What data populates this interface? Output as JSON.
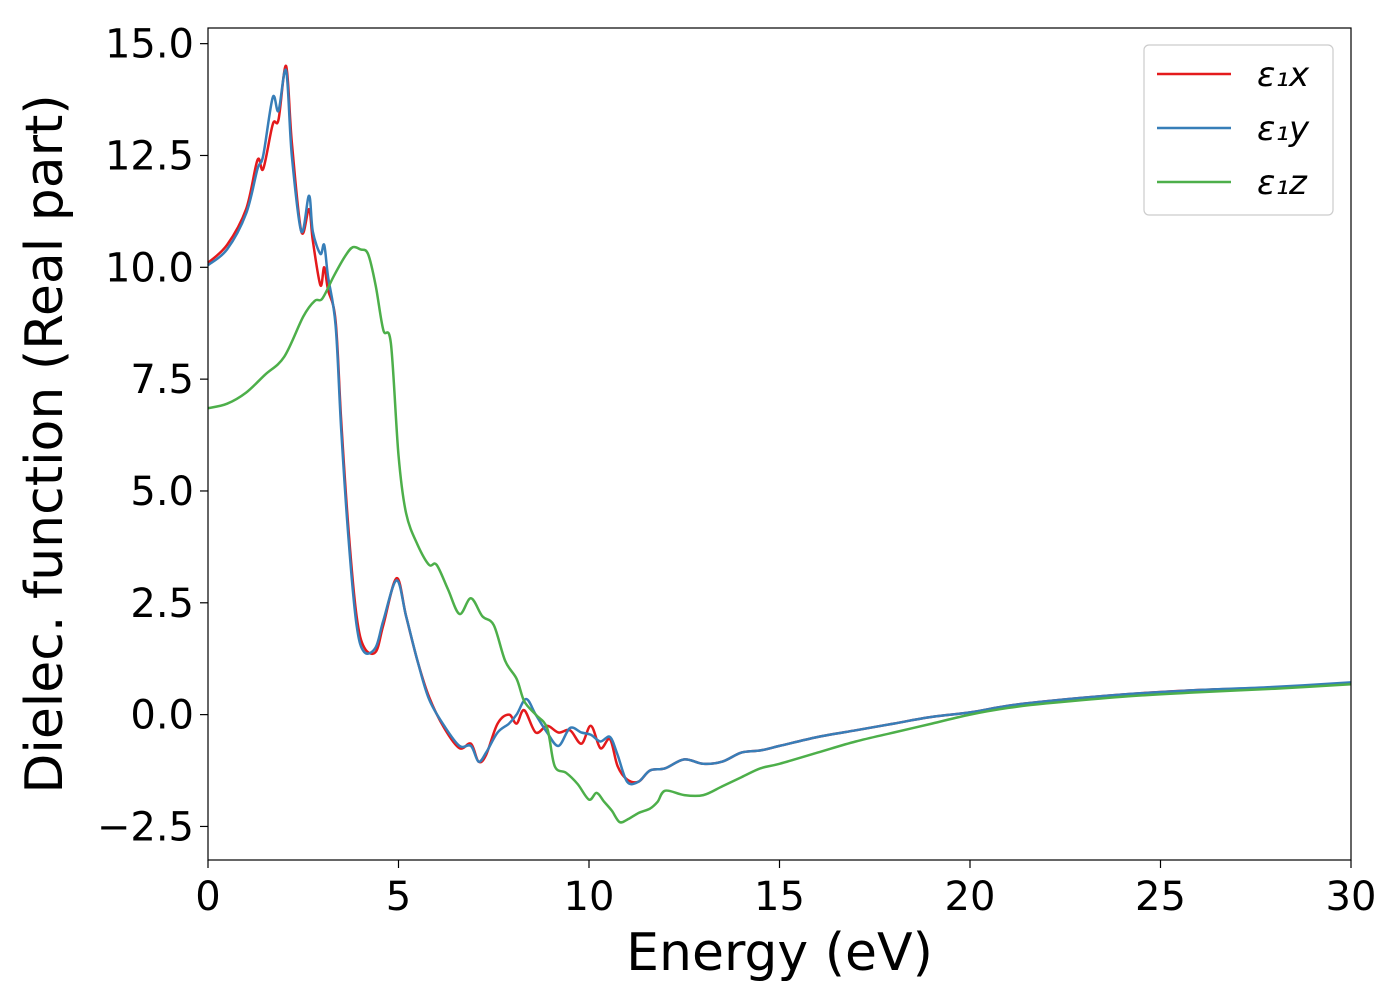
{
  "chart_data": {
    "type": "line",
    "title": "",
    "xlabel": "Energy (eV)",
    "ylabel": "Dielec. function (Real part)",
    "xlim": [
      0,
      30
    ],
    "ylim": [
      -3.25,
      15.35
    ],
    "xticks": [
      0,
      5,
      10,
      15,
      20,
      25,
      30
    ],
    "xtick_labels": [
      "0",
      "5",
      "10",
      "15",
      "20",
      "25",
      "30"
    ],
    "yticks": [
      -2.5,
      0.0,
      2.5,
      5.0,
      7.5,
      10.0,
      12.5,
      15.0
    ],
    "ytick_labels": [
      "−2.5",
      "0.0",
      "2.5",
      "5.0",
      "7.5",
      "10.0",
      "12.5",
      "15.0"
    ],
    "grid": false,
    "legend_position": "top-right",
    "series": [
      {
        "name": "ε₁x",
        "color": "#e41a1c",
        "x": [
          0,
          0.5,
          1.0,
          1.3,
          1.45,
          1.7,
          1.85,
          2.05,
          2.2,
          2.45,
          2.65,
          2.75,
          2.95,
          3.05,
          3.15,
          3.35,
          3.5,
          3.7,
          3.9,
          4.1,
          4.4,
          4.6,
          4.95,
          5.2,
          5.5,
          5.8,
          6.2,
          6.6,
          6.9,
          7.1,
          7.3,
          7.6,
          7.9,
          8.1,
          8.3,
          8.6,
          8.9,
          9.2,
          9.5,
          9.8,
          10.05,
          10.3,
          10.55,
          10.75,
          11.0,
          11.3,
          11.6,
          12.0,
          12.5,
          13.0,
          13.5,
          14.0,
          14.5,
          15.0,
          16.0,
          17.0,
          18.0,
          19.0,
          20.0,
          21.0,
          22.0,
          24.0,
          26.0,
          28.0,
          30.0
        ],
        "y": [
          10.1,
          10.5,
          11.3,
          12.4,
          12.2,
          13.2,
          13.3,
          14.5,
          12.8,
          10.8,
          11.3,
          10.6,
          9.6,
          10.0,
          9.5,
          8.8,
          6.5,
          4.0,
          2.2,
          1.5,
          1.4,
          2.0,
          3.05,
          2.2,
          1.2,
          0.4,
          -0.3,
          -0.75,
          -0.65,
          -1.05,
          -0.9,
          -0.2,
          0.0,
          -0.2,
          0.1,
          -0.4,
          -0.25,
          -0.4,
          -0.35,
          -0.65,
          -0.25,
          -0.75,
          -0.55,
          -1.15,
          -1.45,
          -1.5,
          -1.25,
          -1.2,
          -1.0,
          -1.1,
          -1.05,
          -0.85,
          -0.8,
          -0.7,
          -0.5,
          -0.35,
          -0.2,
          -0.05,
          0.05,
          0.2,
          0.3,
          0.45,
          0.55,
          0.6,
          0.7
        ]
      },
      {
        "name": "ε₁y",
        "color": "#377eb8",
        "x": [
          0,
          0.5,
          1.0,
          1.3,
          1.45,
          1.7,
          1.85,
          2.05,
          2.2,
          2.45,
          2.65,
          2.75,
          2.95,
          3.05,
          3.15,
          3.35,
          3.5,
          3.7,
          3.9,
          4.1,
          4.4,
          4.6,
          4.95,
          5.2,
          5.5,
          5.8,
          6.2,
          6.6,
          6.9,
          7.1,
          7.3,
          7.6,
          7.9,
          8.1,
          8.35,
          8.6,
          8.9,
          9.2,
          9.5,
          9.8,
          10.05,
          10.3,
          10.55,
          10.75,
          11.0,
          11.3,
          11.6,
          12.0,
          12.5,
          13.0,
          13.5,
          14.0,
          14.5,
          15.0,
          16.0,
          17.0,
          18.0,
          19.0,
          20.0,
          21.0,
          22.0,
          24.0,
          26.0,
          28.0,
          30.0
        ],
        "y": [
          10.05,
          10.4,
          11.2,
          12.2,
          12.5,
          13.8,
          13.5,
          14.4,
          12.5,
          10.8,
          11.6,
          10.8,
          10.3,
          10.5,
          9.8,
          8.7,
          6.3,
          3.8,
          2.0,
          1.4,
          1.5,
          2.1,
          3.0,
          2.2,
          1.2,
          0.35,
          -0.25,
          -0.7,
          -0.7,
          -1.05,
          -0.85,
          -0.4,
          -0.2,
          0.0,
          0.35,
          0.0,
          -0.4,
          -0.7,
          -0.3,
          -0.4,
          -0.45,
          -0.6,
          -0.5,
          -0.9,
          -1.5,
          -1.5,
          -1.25,
          -1.2,
          -1.0,
          -1.1,
          -1.05,
          -0.85,
          -0.8,
          -0.7,
          -0.5,
          -0.35,
          -0.2,
          -0.05,
          0.05,
          0.2,
          0.3,
          0.45,
          0.55,
          0.62,
          0.72
        ]
      },
      {
        "name": "ε₁z",
        "color": "#4daf4a",
        "x": [
          0,
          0.5,
          1.0,
          1.5,
          2.0,
          2.5,
          2.8,
          3.0,
          3.3,
          3.6,
          3.8,
          4.0,
          4.2,
          4.4,
          4.6,
          4.8,
          5.0,
          5.2,
          5.5,
          5.8,
          6.0,
          6.3,
          6.6,
          6.9,
          7.2,
          7.5,
          7.8,
          8.1,
          8.3,
          8.6,
          8.9,
          9.1,
          9.4,
          9.7,
          10.0,
          10.2,
          10.4,
          10.6,
          10.8,
          11.0,
          11.3,
          11.6,
          11.8,
          12.0,
          12.5,
          13.0,
          13.5,
          14.0,
          14.5,
          15.0,
          16.0,
          17.0,
          18.0,
          19.0,
          20.0,
          21.0,
          22.0,
          24.0,
          26.0,
          28.0,
          30.0
        ],
        "y": [
          6.85,
          6.95,
          7.2,
          7.6,
          8.0,
          8.9,
          9.25,
          9.3,
          9.8,
          10.25,
          10.45,
          10.4,
          10.3,
          9.6,
          8.6,
          8.3,
          5.8,
          4.5,
          3.8,
          3.35,
          3.35,
          2.8,
          2.25,
          2.6,
          2.2,
          2.0,
          1.2,
          0.8,
          0.3,
          0.0,
          -0.3,
          -1.15,
          -1.3,
          -1.55,
          -1.9,
          -1.75,
          -1.95,
          -2.15,
          -2.4,
          -2.35,
          -2.2,
          -2.1,
          -1.95,
          -1.7,
          -1.8,
          -1.8,
          -1.6,
          -1.4,
          -1.2,
          -1.1,
          -0.85,
          -0.6,
          -0.4,
          -0.2,
          0.0,
          0.15,
          0.25,
          0.4,
          0.5,
          0.58,
          0.68
        ]
      }
    ]
  }
}
